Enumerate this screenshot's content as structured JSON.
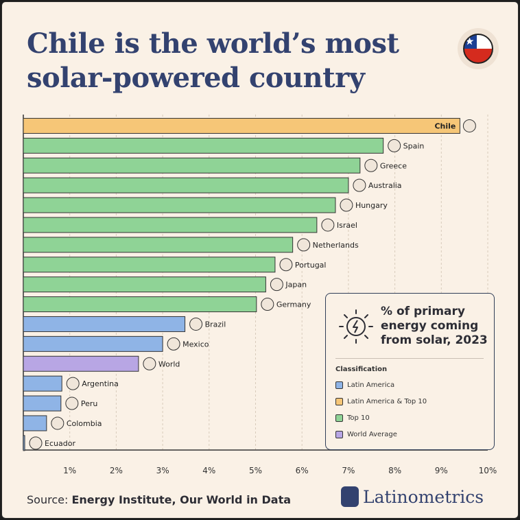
{
  "title": "Chile is the world’s most solar-powered country",
  "source_prefix": "Source: ",
  "source_text": "Energy Institute, Our World in Data",
  "brand": "Latinometrics",
  "legend": {
    "heading": "% of primary energy coming from solar, 2023",
    "subheading": "Classification",
    "items": [
      {
        "label": "Latin America",
        "color": "#8fb4e6"
      },
      {
        "label": "Latin America & Top 10",
        "color": "#f6c677"
      },
      {
        "label": "Top 10",
        "color": "#8fd396"
      },
      {
        "label": "World Average",
        "color": "#b8a6e4"
      }
    ]
  },
  "chart_data": {
    "type": "bar",
    "orientation": "horizontal",
    "xlim": [
      0,
      10
    ],
    "x_ticks": [
      "1%",
      "2%",
      "3%",
      "4%",
      "5%",
      "6%",
      "7%",
      "8%",
      "9%",
      "10%"
    ],
    "grid": true,
    "categories": [
      "Chile",
      "Spain",
      "Greece",
      "Australia",
      "Hungary",
      "Israel",
      "Netherlands",
      "Portugal",
      "Japan",
      "Germany",
      "Brazil",
      "Mexico",
      "World",
      "Argentina",
      "Peru",
      "Colombia",
      "Ecuador"
    ],
    "values": [
      9.4,
      7.75,
      7.25,
      7.0,
      6.72,
      6.32,
      5.8,
      5.42,
      5.22,
      5.02,
      3.48,
      3.0,
      2.48,
      0.83,
      0.81,
      0.5,
      0.03
    ],
    "classes": [
      "Latin America & Top 10",
      "Top 10",
      "Top 10",
      "Top 10",
      "Top 10",
      "Top 10",
      "Top 10",
      "Top 10",
      "Top 10",
      "Top 10",
      "Latin America",
      "Latin America",
      "World Average",
      "Latin America",
      "Latin America",
      "Latin America",
      "Latin America"
    ],
    "colors": {
      "Latin America": "#8fb4e6",
      "Latin America & Top 10": "#f6c677",
      "Top 10": "#8fd396",
      "World Average": "#b8a6e4"
    }
  }
}
